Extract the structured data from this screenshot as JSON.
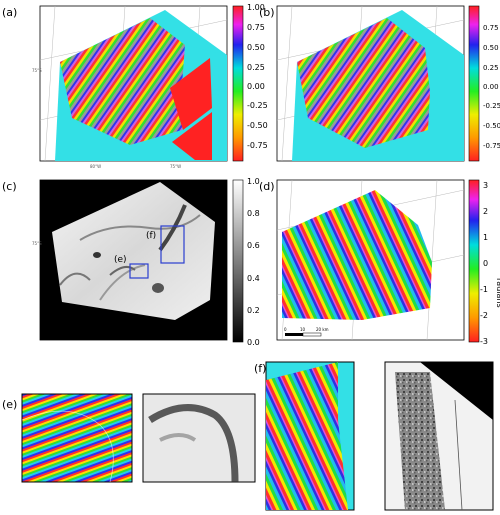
{
  "panels": {
    "a": {
      "label": "(a)",
      "lat_label": "75°S",
      "lon_labels": [
        "80°W",
        "75°W",
        "70°W"
      ]
    },
    "b": {
      "label": "(b)"
    },
    "c": {
      "label": "(c)",
      "inset_labels": [
        "(e)",
        "(f)"
      ],
      "lat_label": "75°S"
    },
    "d": {
      "label": "(d)",
      "scalebar": [
        "0",
        "10",
        "20 km"
      ]
    },
    "e": {
      "label": "(e)"
    },
    "f": {
      "label": "(f)"
    }
  },
  "colorbar_a": {
    "ticks": [
      "1.00",
      "0.75",
      "0.50",
      "0.25",
      "0.00",
      "-0.25",
      "-0.50",
      "-0.75"
    ]
  },
  "colorbar_b": {
    "ticks": [
      "0.75",
      "0.50",
      "0.25",
      "0.00",
      "-0.25",
      "-0.50",
      "-0.75"
    ]
  },
  "colorbar_c": {
    "ticks": [
      "1.0",
      "0.8",
      "0.6",
      "0.4",
      "0.2",
      "0.0"
    ]
  },
  "colorbar_d": {
    "ticks": [
      "3",
      "2",
      "1",
      "0",
      "-1",
      "-2",
      "-3"
    ],
    "label": "radians"
  },
  "colors": {
    "background": "#33e0e6",
    "fill": "#ff2222",
    "box": "#2a3ecf"
  }
}
